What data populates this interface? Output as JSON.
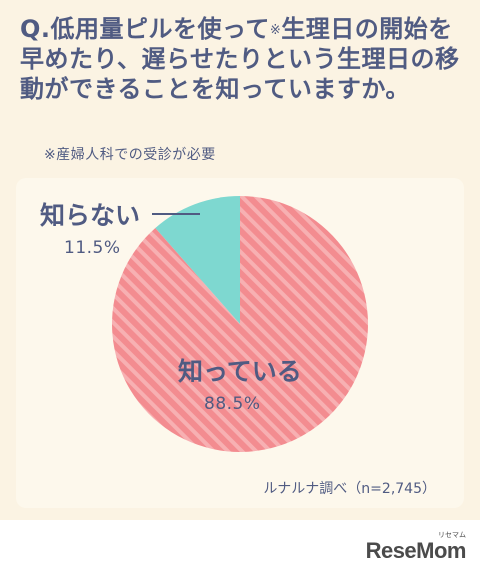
{
  "question": {
    "text_before": "Q.低用量ピルを使って",
    "mark": "※",
    "text_after": "生理日の開始を早めたり、遅らせたりという生理日の移動ができることを知っていますか。"
  },
  "note": "※産婦人科での受診が必要",
  "source": "ルナルナ調べ（n=2,745）",
  "logo": {
    "text": "ReseMom",
    "sub": "リセマム"
  },
  "colors": {
    "known": "#f38c90",
    "known_stripe": "#f7b0b2",
    "unknown": "#7ed8d0",
    "text": "#505b82"
  },
  "chart_data": {
    "type": "pie",
    "categories": [
      "知っている",
      "知らない"
    ],
    "values": [
      88.5,
      11.5
    ],
    "value_labels": [
      "88.5%",
      "11.5%"
    ],
    "start": "12 o'clock, counter-clockwise for 知らない",
    "legend": "none"
  }
}
